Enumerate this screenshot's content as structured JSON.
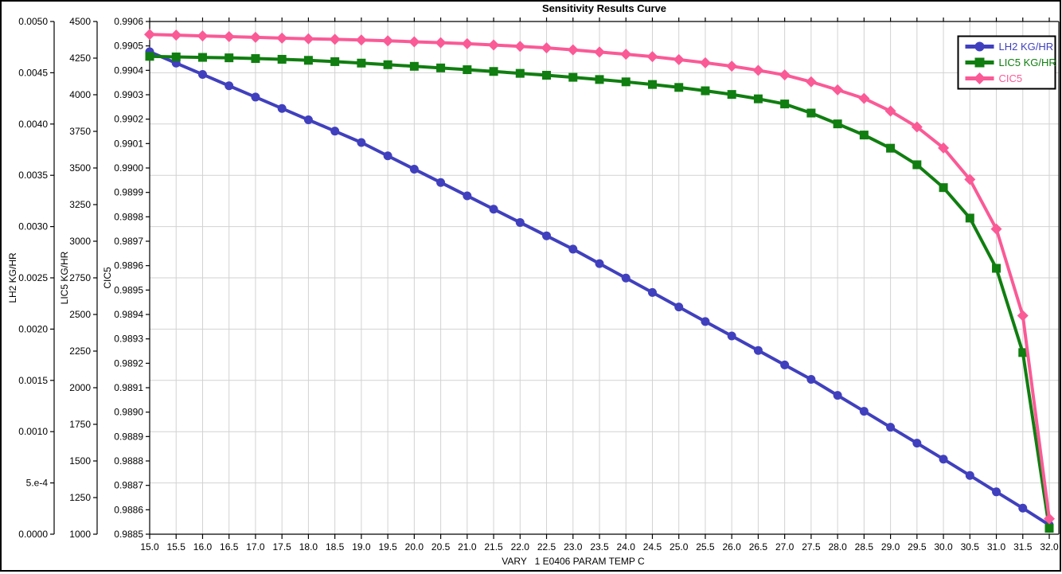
{
  "window": {
    "title": "Sensitivity Results Curve"
  },
  "chart_data": {
    "type": "line",
    "title": "Sensitivity Results Curve",
    "xlabel": "VARY   1 E0406 PARAM TEMP C",
    "grid": true,
    "grid_color": "#d2d2d2",
    "axis_color": "#000000",
    "background_color": "#ffffff",
    "legend": {
      "position": "top-right",
      "border_color": "#000000"
    },
    "x": [
      15.0,
      15.5,
      16.0,
      16.5,
      17.0,
      17.5,
      18.0,
      18.5,
      19.0,
      19.5,
      20.0,
      20.5,
      21.0,
      21.5,
      22.0,
      22.5,
      23.0,
      23.5,
      24.0,
      24.5,
      25.0,
      25.5,
      26.0,
      26.5,
      27.0,
      27.5,
      28.0,
      28.5,
      29.0,
      29.5,
      30.0,
      30.5,
      31.0,
      31.5,
      32.0
    ],
    "x_tick_labels": [
      "15.0",
      "15.5",
      "16.0",
      "16.5",
      "17.0",
      "17.5",
      "18.0",
      "18.5",
      "19.0",
      "19.5",
      "20.0",
      "20.5",
      "21.0",
      "21.5",
      "22.0",
      "22.5",
      "23.0",
      "23.5",
      "24.0",
      "24.5",
      "25.0",
      "25.5",
      "26.0",
      "26.5",
      "27.0",
      "27.5",
      "28.0",
      "28.5",
      "29.0",
      "29.5",
      "30.0",
      "30.5",
      "31.0",
      "31.5",
      "32.0"
    ],
    "x_range": [
      15.0,
      32.0
    ],
    "axes": [
      {
        "id": "lh2",
        "label": "LH2 KG/HR",
        "min": 0,
        "max": 0.005,
        "tick_labels": [
          "0.0050",
          "0.0045",
          "0.0040",
          "0.0035",
          "0.0030",
          "0.0025",
          "0.0020",
          "0.0015",
          "0.0010",
          "5.e-4",
          "0.0000"
        ]
      },
      {
        "id": "lic5",
        "label": "LIC5 KG/HR",
        "min": 1000,
        "max": 4500,
        "tick_labels": [
          "4500",
          "4250",
          "4000",
          "3750",
          "3500",
          "3250",
          "3000",
          "2750",
          "2500",
          "2250",
          "2000",
          "1750",
          "1500",
          "1250",
          "1000"
        ]
      },
      {
        "id": "cic5",
        "label": "CIC5",
        "min": 0.9885,
        "max": 0.9906,
        "tick_labels": [
          "0.9906",
          "0.9905",
          "0.9904",
          "0.9903",
          "0.9902",
          "0.9901",
          "0.9900",
          "0.9899",
          "0.9898",
          "0.9897",
          "0.9896",
          "0.9895",
          "0.9894",
          "0.9893",
          "0.9892",
          "0.9891",
          "0.9890",
          "0.9889",
          "0.9888",
          "0.9887",
          "0.9886",
          "0.9885"
        ]
      }
    ],
    "series": [
      {
        "name": "LH2 KG/HR",
        "axis": "lh2",
        "color": "#4040be",
        "marker": "circle",
        "values": [
          0.004705,
          0.004594,
          0.004484,
          0.004373,
          0.004263,
          0.004152,
          0.004041,
          0.003931,
          0.00382,
          0.00369,
          0.00356,
          0.00343,
          0.0033,
          0.00317,
          0.00304,
          0.00291,
          0.00278,
          0.002639,
          0.002498,
          0.002357,
          0.002216,
          0.002074,
          0.001933,
          0.001792,
          0.001651,
          0.00151,
          0.001354,
          0.001199,
          0.001043,
          0.000888,
          0.000732,
          0.000573,
          0.000413,
          0.000254,
          9e-05
        ]
      },
      {
        "name": "LIC5 KG/HR",
        "axis": "lic5",
        "color": "#107e10",
        "marker": "square",
        "values": [
          4262,
          4258,
          4255,
          4252,
          4247,
          4242,
          4235,
          4226,
          4216,
          4205,
          4194,
          4183,
          4171,
          4159,
          4146,
          4133,
          4119,
          4104,
          4088,
          4070,
          4050,
          4027,
          4002,
          3972,
          3937,
          3875,
          3801,
          3725,
          3635,
          3522,
          3366,
          3158,
          2815,
          2240,
          1040
        ]
      },
      {
        "name": "CIC5",
        "axis": "cic5",
        "color": "#fa5a96",
        "marker": "diamond",
        "values": [
          0.990547,
          0.990544,
          0.990541,
          0.990538,
          0.990535,
          0.990532,
          0.990529,
          0.990527,
          0.990524,
          0.990521,
          0.990517,
          0.990513,
          0.990509,
          0.990504,
          0.990498,
          0.990492,
          0.990484,
          0.990475,
          0.990466,
          0.990456,
          0.990444,
          0.990431,
          0.990417,
          0.9904,
          0.990381,
          0.990353,
          0.99032,
          0.990285,
          0.990233,
          0.990168,
          0.990082,
          0.989953,
          0.98975,
          0.989395,
          0.988563
        ]
      }
    ]
  }
}
